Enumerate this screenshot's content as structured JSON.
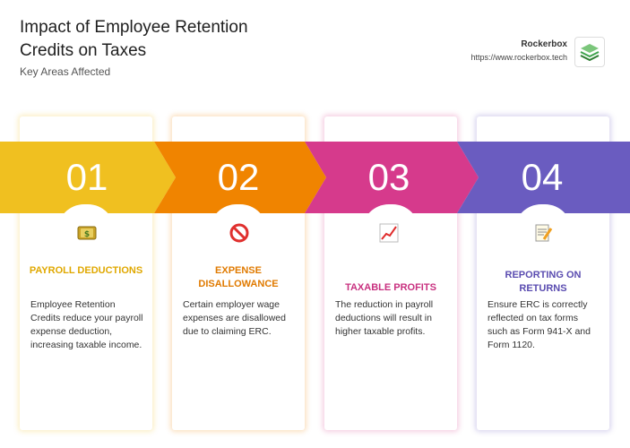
{
  "header": {
    "title": "Impact of Employee Retention Credits on Taxes",
    "subtitle": "Key Areas Affected"
  },
  "brand": {
    "name": "Rockerbox",
    "url": "https://www.rockerbox.tech",
    "logo_icon": "stacked-layers-icon"
  },
  "cards": [
    {
      "number": "01",
      "heading": "PAYROLL DEDUCTIONS",
      "description": "Employee Retention Credits reduce your payroll expense deduction, increasing taxable income.",
      "icon": "money-bag-icon",
      "color": "#f0c020"
    },
    {
      "number": "02",
      "heading": "EXPENSE DISALLOWANCE",
      "description": "Certain employer wage expenses are disallowed due to claiming ERC.",
      "icon": "prohibited-icon",
      "color": "#f08400"
    },
    {
      "number": "03",
      "heading": "TAXABLE PROFITS",
      "description": "The reduction in payroll deductions will result in higher taxable profits.",
      "icon": "chart-increasing-icon",
      "color": "#d63a8c"
    },
    {
      "number": "04",
      "heading": "REPORTING ON RETURNS",
      "description": "Ensure ERC is correctly reflected on tax forms such as Form 941-X and Form 1120.",
      "icon": "memo-icon",
      "color": "#6a5cc0"
    }
  ]
}
